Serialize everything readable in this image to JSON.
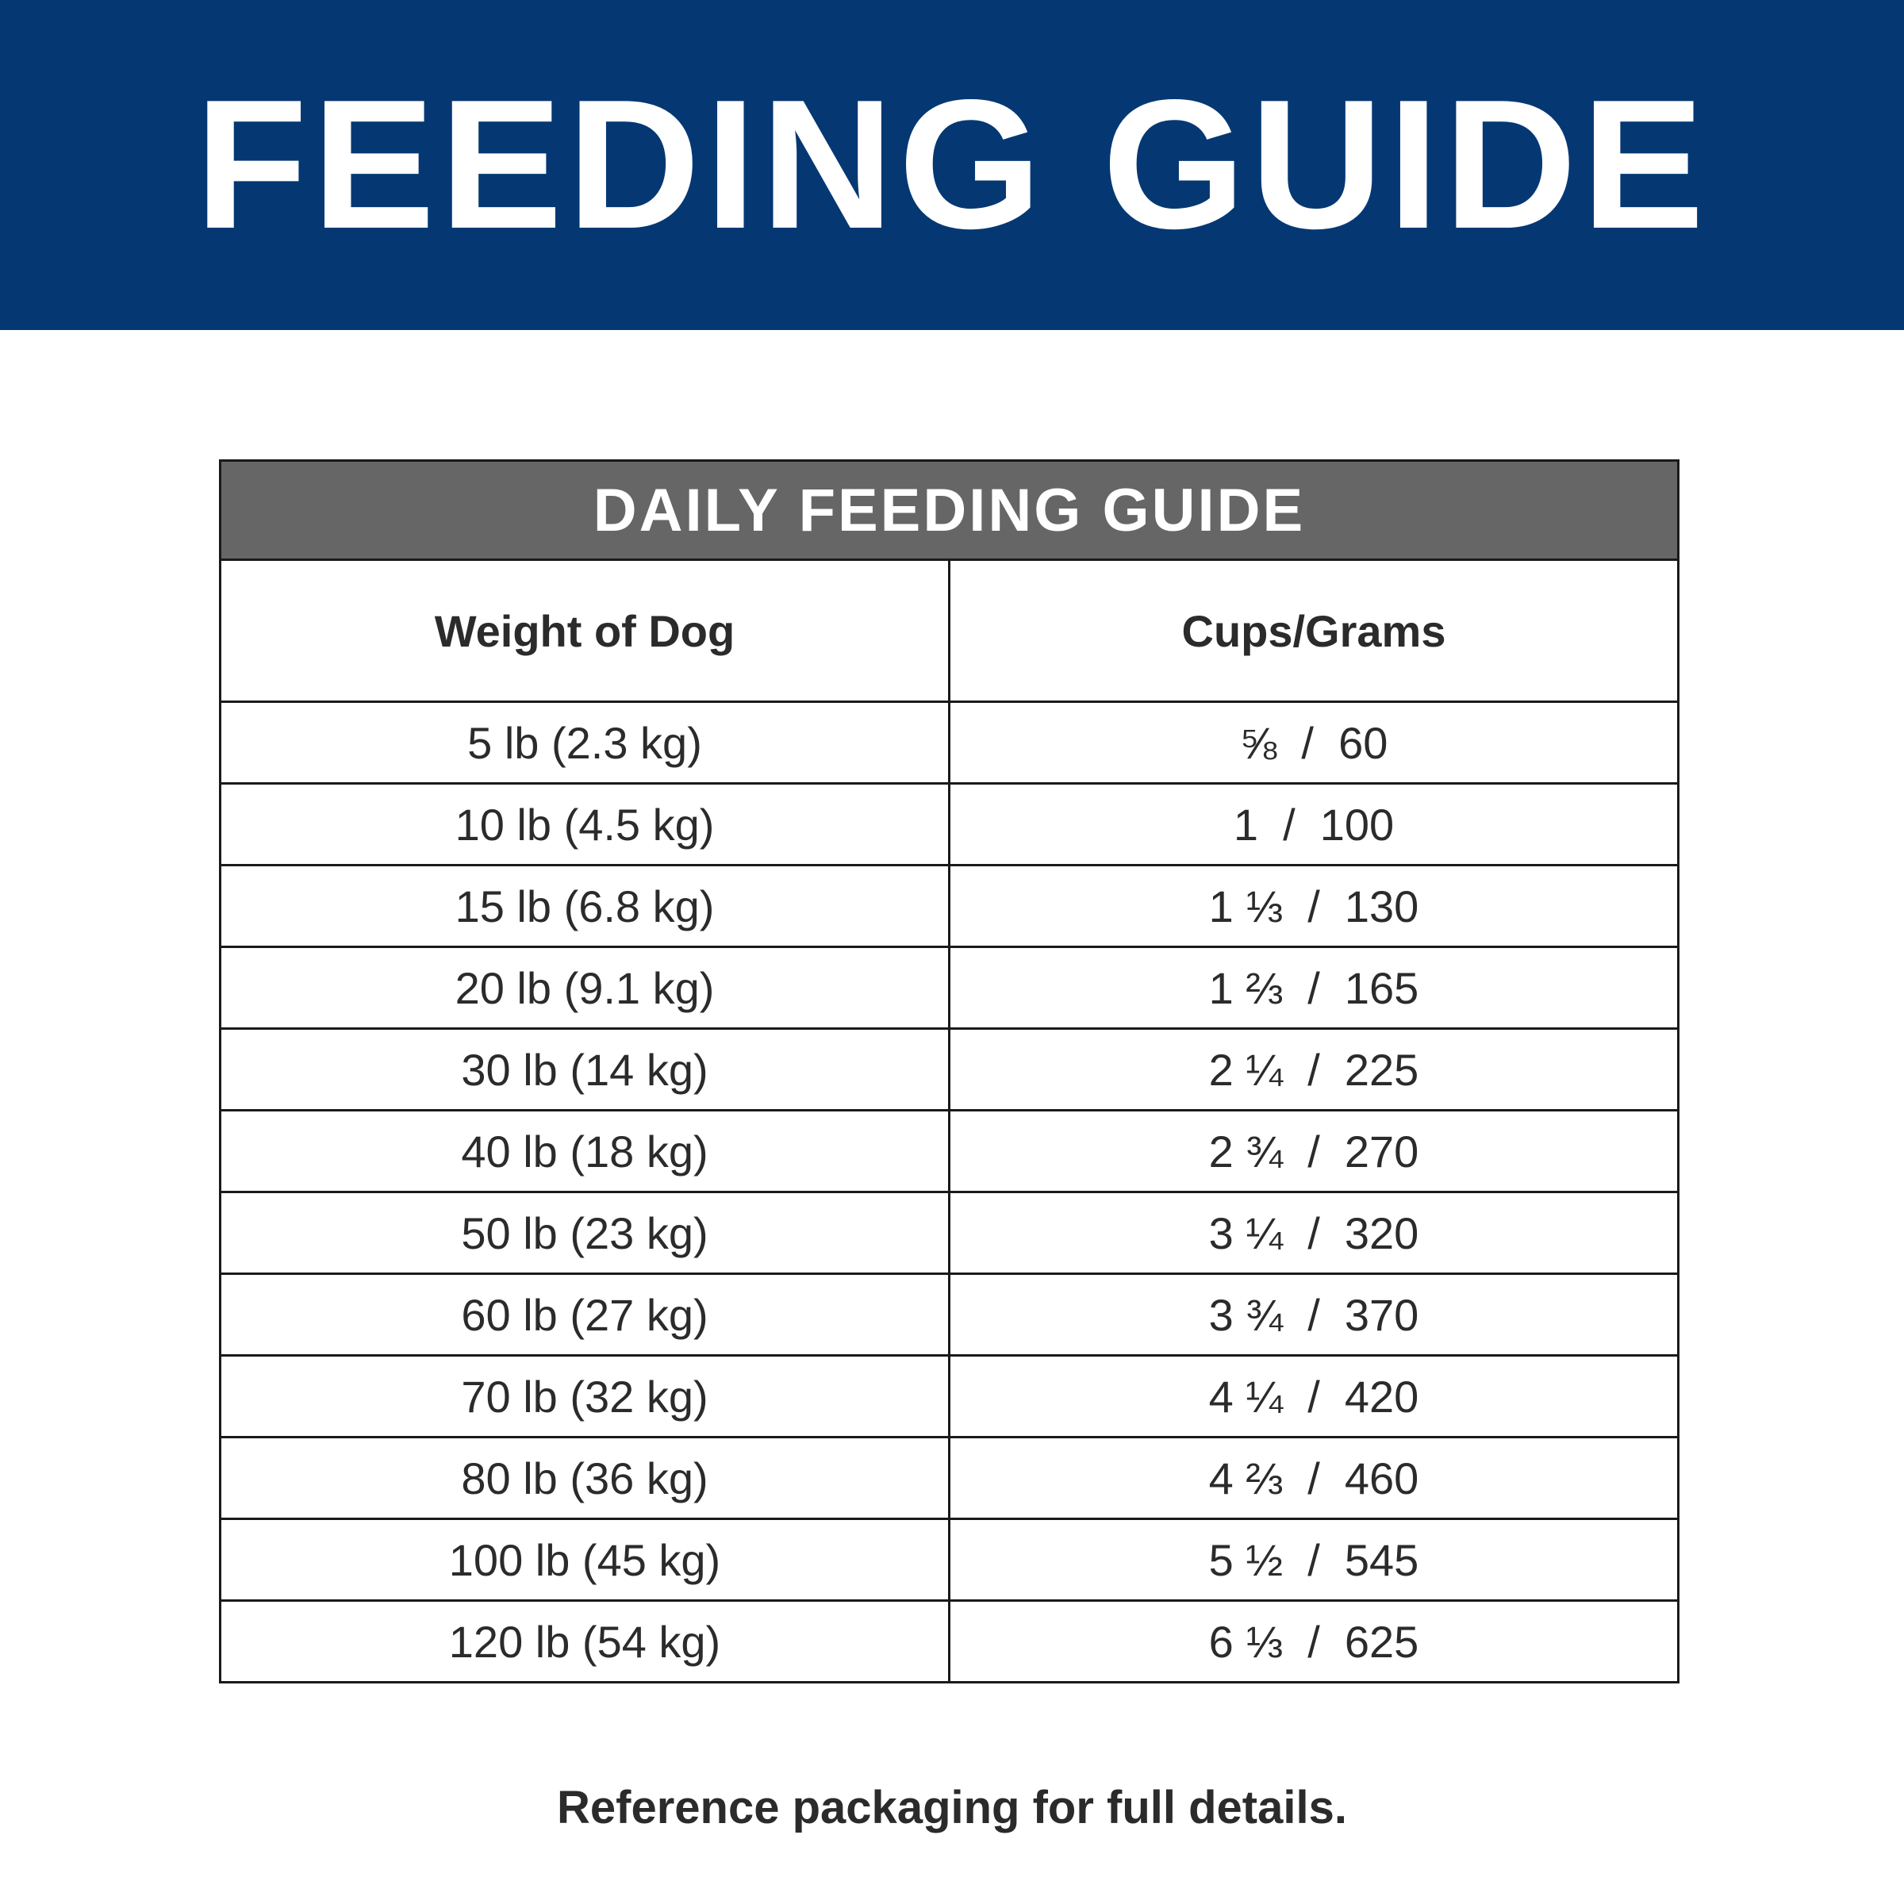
{
  "header": {
    "title": "FEEDING GUIDE"
  },
  "table": {
    "title": "DAILY FEEDING GUIDE",
    "columns": [
      "Weight of Dog",
      "Cups/Grams"
    ],
    "rows": [
      [
        "5 lb (2.3 kg)",
        "⅝  /  60"
      ],
      [
        "10 lb (4.5 kg)",
        "1  /  100"
      ],
      [
        "15 lb (6.8 kg)",
        "1 ⅓  /  130"
      ],
      [
        "20 lb (9.1 kg)",
        "1 ⅔  /  165"
      ],
      [
        "30 lb (14 kg)",
        "2 ¼  /  225"
      ],
      [
        "40 lb (18 kg)",
        "2 ¾  /  270"
      ],
      [
        "50 lb (23 kg)",
        "3 ¼  /  320"
      ],
      [
        "60 lb (27 kg)",
        "3 ¾  /  370"
      ],
      [
        "70 lb (32 kg)",
        "4 ¼  /  420"
      ],
      [
        "80 lb (36 kg)",
        "4 ⅔  /  460"
      ],
      [
        "100 lb (45 kg)",
        "5 ½  /  545"
      ],
      [
        "120 lb (54 kg)",
        "6 ⅓  /  625"
      ]
    ]
  },
  "footer": {
    "note": "Reference packaging for full details."
  }
}
